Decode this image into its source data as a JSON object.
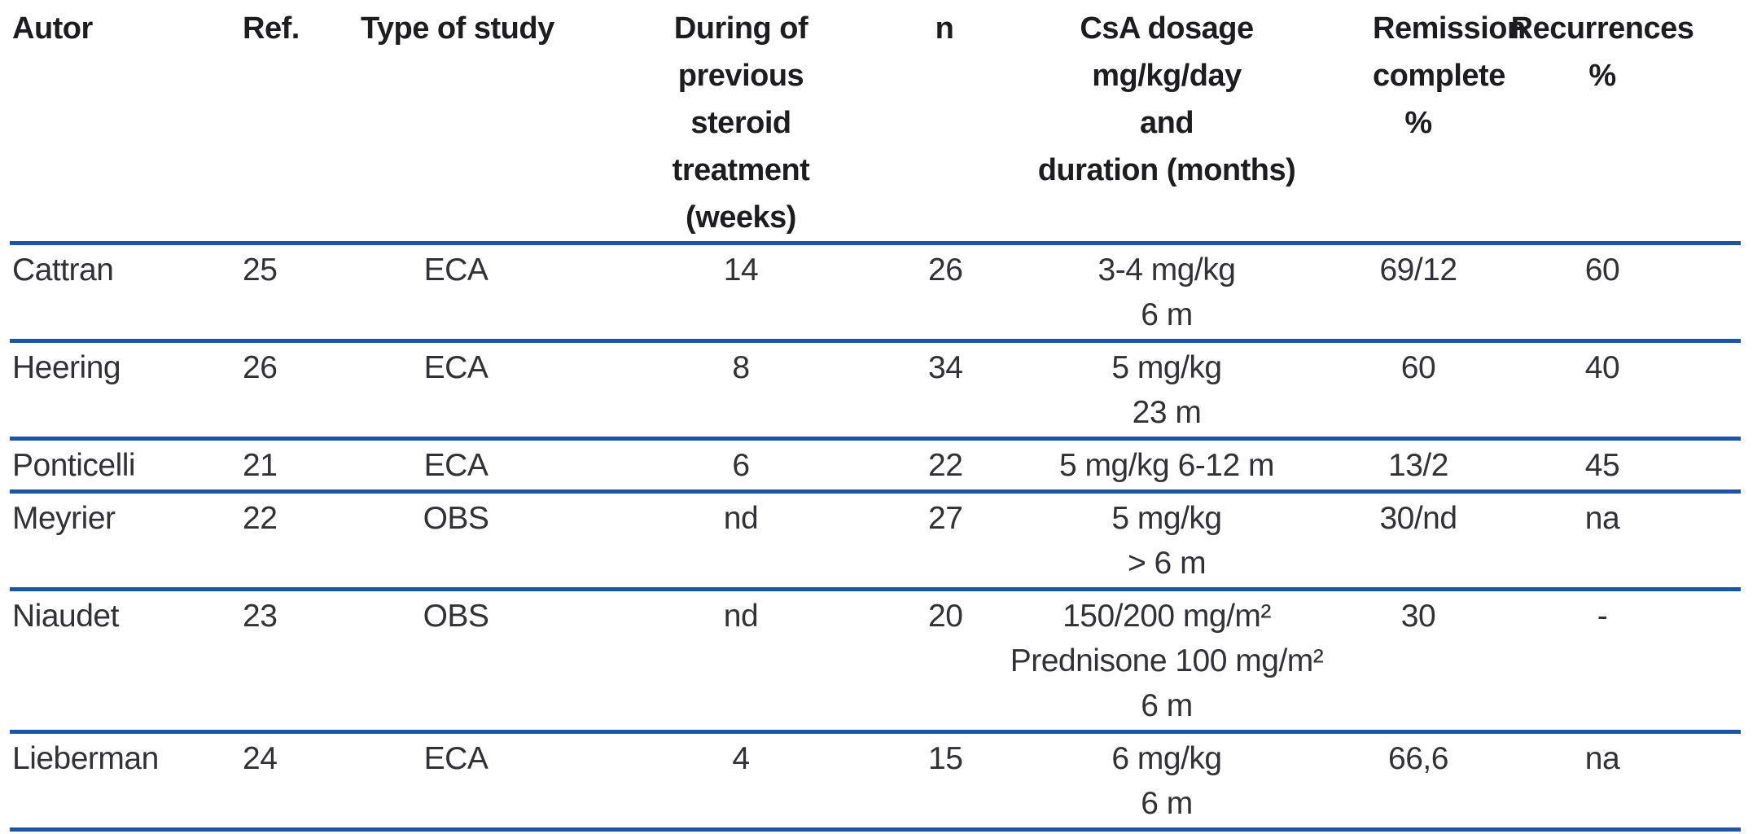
{
  "page": {
    "background": "#ffffff",
    "rule_color": "#1c55a5",
    "header_text_color": "#1d1d20",
    "body_text_color": "#323236"
  },
  "table": {
    "headers": {
      "autor": "Autor",
      "ref": "Ref.",
      "type": "Type of study",
      "steroid": [
        "During of",
        "previous",
        "steroid",
        "treatment",
        "(weeks)"
      ],
      "n": "n",
      "dosage": [
        "CsA dosage",
        "mg/kg/day",
        "and",
        "duration (months)"
      ],
      "remission": [
        "Remission",
        "complete",
        "%"
      ],
      "recurrences": [
        "Recurrences",
        "%"
      ]
    },
    "rows": [
      {
        "autor": "Cattran",
        "ref": "25",
        "type": "ECA",
        "steroid_weeks": "14",
        "n": "26",
        "dosage": [
          "3-4 mg/kg",
          "6 m"
        ],
        "remission": "69/12",
        "recurrences": "60"
      },
      {
        "autor": "Heering",
        "ref": "26",
        "type": "ECA",
        "steroid_weeks": "8",
        "n": "34",
        "dosage": [
          "5 mg/kg",
          "23 m"
        ],
        "remission": "60",
        "recurrences": "40"
      },
      {
        "autor": "Ponticelli",
        "ref": "21",
        "type": "ECA",
        "steroid_weeks": "6",
        "n": "22",
        "dosage": [
          "5 mg/kg 6-12 m"
        ],
        "remission": "13/2",
        "recurrences": "45"
      },
      {
        "autor": "Meyrier",
        "ref": "22",
        "type": "OBS",
        "steroid_weeks": "nd",
        "n": "27",
        "dosage": [
          "5 mg/kg",
          "> 6 m"
        ],
        "remission": "30/nd",
        "recurrences": "na"
      },
      {
        "autor": "Niaudet",
        "ref": "23",
        "type": "OBS",
        "steroid_weeks": "nd",
        "n": "20",
        "dosage": [
          "150/200 mg/m²",
          "Prednisone 100 mg/m²",
          "6 m"
        ],
        "remission": "30",
        "recurrences": "-"
      },
      {
        "autor": "Lieberman",
        "ref": "24",
        "type": "ECA",
        "steroid_weeks": "4",
        "n": "15",
        "dosage": [
          "6 mg/kg",
          "6 m"
        ],
        "remission": "66,6",
        "recurrences": "na"
      }
    ]
  }
}
